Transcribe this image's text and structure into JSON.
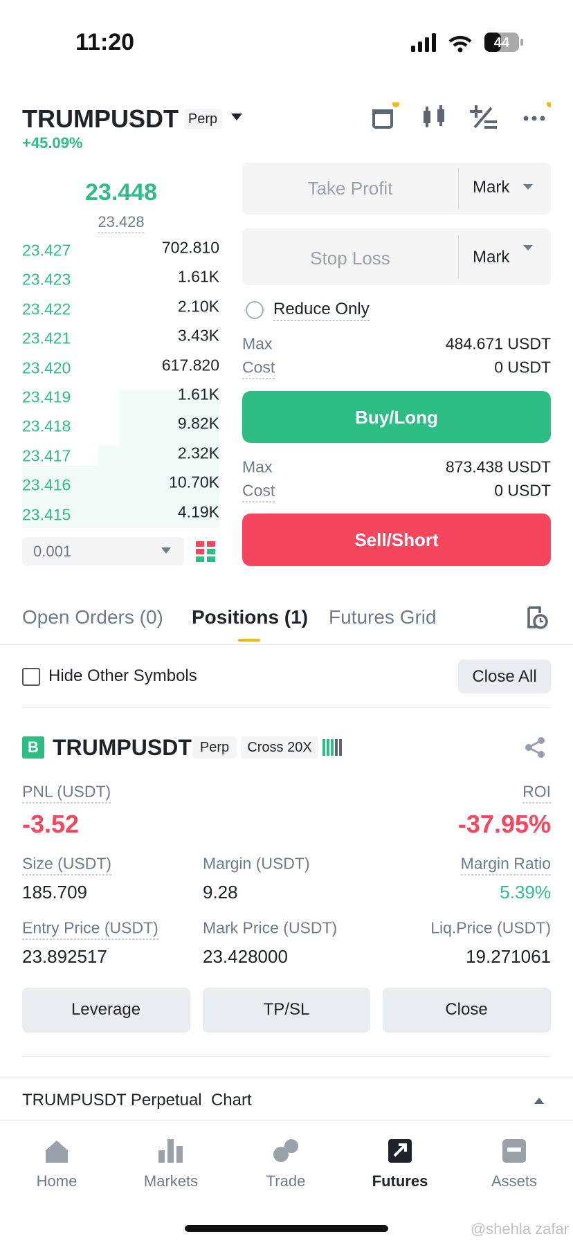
{
  "status_bar": {
    "time": "11:20",
    "battery": "44"
  },
  "header": {
    "symbol": "TRUMPUSDT",
    "badge": "Perp",
    "change": "+45.09%"
  },
  "order_book": {
    "last_price": "23.448",
    "mark_price": "23.428",
    "rows": [
      [
        "23.427",
        "702.810"
      ],
      [
        "23.423",
        "1.61K"
      ],
      [
        "23.422",
        "2.10K"
      ],
      [
        "23.421",
        "3.43K"
      ],
      [
        "23.420",
        "617.820"
      ],
      [
        "23.419",
        "1.61K"
      ],
      [
        "23.418",
        "9.82K"
      ],
      [
        "23.417",
        "2.32K"
      ],
      [
        "23.416",
        "10.70K"
      ],
      [
        "23.415",
        "4.19K"
      ]
    ],
    "depth": "0.001"
  },
  "order_form": {
    "take_profit": "Take Profit",
    "take_profit_type": "Mark",
    "stop_loss": "Stop Loss",
    "stop_loss_type": "Mark",
    "reduce_only": "Reduce Only",
    "buy": {
      "max_label": "Max",
      "max_value": "484.671 USDT",
      "cost_label": "Cost",
      "cost_value": "0 USDT",
      "button": "Buy/Long"
    },
    "sell": {
      "max_label": "Max",
      "max_value": "873.438 USDT",
      "cost_label": "Cost",
      "cost_value": "0 USDT",
      "button": "Sell/Short"
    }
  },
  "tabs": [
    "Open Orders (0)",
    "Positions (1)",
    "Futures Grid"
  ],
  "positions_toolbar": {
    "hide_other": "Hide Other Symbols",
    "close_all": "Close All"
  },
  "position": {
    "side": "B",
    "symbol": "TRUMPUSDT",
    "badge": "Perp",
    "margin_mode": "Cross 20X",
    "pnl_label": "PNL (USDT)",
    "pnl": "-3.52",
    "roi_label": "ROI",
    "roi": "-37.95%",
    "fields": [
      {
        "label": "Size (USDT)",
        "value": "185.709"
      },
      {
        "label": "Margin (USDT)",
        "value": "9.28"
      },
      {
        "label": "Margin Ratio",
        "value": "5.39%"
      },
      {
        "label": "Entry Price (USDT)",
        "value": "23.892517"
      },
      {
        "label": "Mark Price (USDT)",
        "value": "23.428000"
      },
      {
        "label": "Liq.Price (USDT)",
        "value": "19.271061"
      }
    ],
    "actions": [
      "Leverage",
      "TP/SL",
      "Close"
    ]
  },
  "chart_row": "TRUMPUSDT Perpetual  Chart",
  "nav": [
    "Home",
    "Markets",
    "Trade",
    "Futures",
    "Assets"
  ],
  "watermark": "@shehla zafar"
}
